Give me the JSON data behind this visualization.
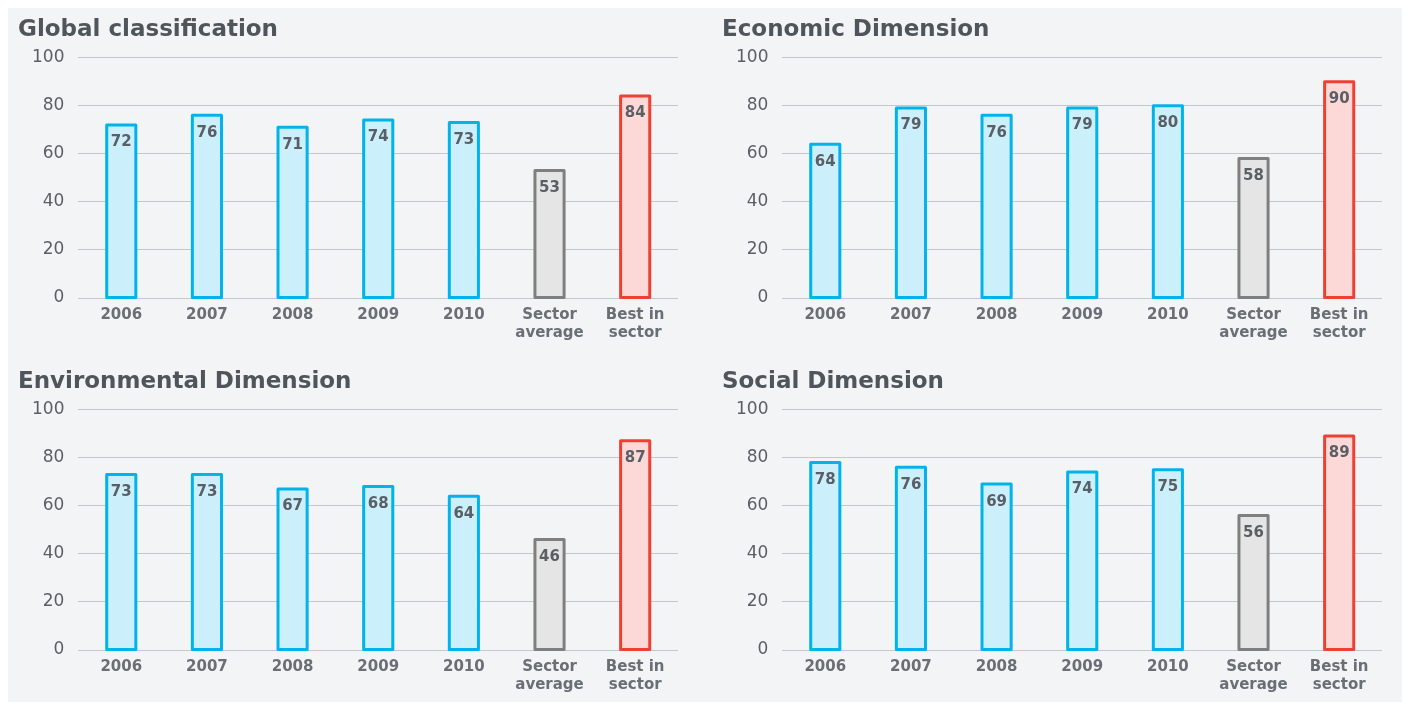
{
  "chart_data": [
    {
      "type": "bar",
      "title": "Global classification",
      "categories": [
        "2006",
        "2007",
        "2008",
        "2009",
        "2010",
        "Sector average",
        "Best in sector"
      ],
      "values": [
        72,
        76,
        71,
        74,
        73,
        53,
        84
      ],
      "colors": [
        "#00b4ea",
        "#00b4ea",
        "#00b4ea",
        "#00b4ea",
        "#00b4ea",
        "#7f7f7f",
        "#ee4035"
      ],
      "ylim": [
        0,
        100
      ],
      "yticks": [
        0,
        20,
        40,
        60,
        80,
        100
      ],
      "grid": "y",
      "data_labels": true
    },
    {
      "type": "bar",
      "title": "Economic Dimension",
      "categories": [
        "2006",
        "2007",
        "2008",
        "2009",
        "2010",
        "Sector average",
        "Best in sector"
      ],
      "values": [
        64,
        79,
        76,
        79,
        80,
        58,
        90
      ],
      "colors": [
        "#00b4ea",
        "#00b4ea",
        "#00b4ea",
        "#00b4ea",
        "#00b4ea",
        "#7f7f7f",
        "#ee4035"
      ],
      "ylim": [
        0,
        100
      ],
      "yticks": [
        0,
        20,
        40,
        60,
        80,
        100
      ],
      "grid": "y",
      "data_labels": true
    },
    {
      "type": "bar",
      "title": "Environmental Dimension",
      "categories": [
        "2006",
        "2007",
        "2008",
        "2009",
        "2010",
        "Sector average",
        "Best in sector"
      ],
      "values": [
        73,
        73,
        67,
        68,
        64,
        46,
        87
      ],
      "colors": [
        "#00b4ea",
        "#00b4ea",
        "#00b4ea",
        "#00b4ea",
        "#00b4ea",
        "#7f7f7f",
        "#ee4035"
      ],
      "ylim": [
        0,
        100
      ],
      "yticks": [
        0,
        20,
        40,
        60,
        80,
        100
      ],
      "grid": "y",
      "data_labels": true
    },
    {
      "type": "bar",
      "title": "Social Dimension",
      "categories": [
        "2006",
        "2007",
        "2008",
        "2009",
        "2010",
        "Sector average",
        "Best in sector"
      ],
      "values": [
        78,
        76,
        69,
        74,
        75,
        56,
        89
      ],
      "colors": [
        "#00b4ea",
        "#00b4ea",
        "#00b4ea",
        "#00b4ea",
        "#00b4ea",
        "#7f7f7f",
        "#ee4035"
      ],
      "ylim": [
        0,
        100
      ],
      "yticks": [
        0,
        20,
        40,
        60,
        80,
        100
      ],
      "grid": "y",
      "data_labels": true
    }
  ]
}
